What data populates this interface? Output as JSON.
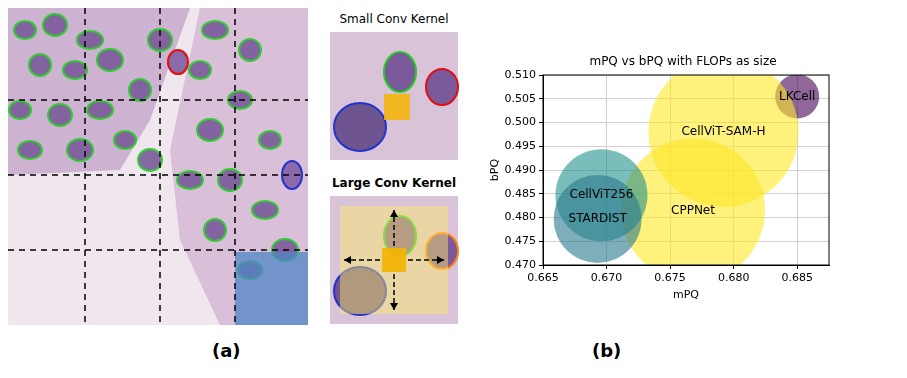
{
  "chart_data": {
    "type": "bubble",
    "title": "mPQ vs bPQ with FLOPs as size",
    "x_label": "mPQ",
    "y_label": "bPQ",
    "labels": [
      "LKCell",
      "CellViT-SAM-H",
      "CPPNet",
      "CellViT256",
      "STARDIST"
    ],
    "x": [
      0.685,
      0.6792,
      0.6768,
      0.6696,
      0.6693
    ],
    "values": [
      0.5055,
      0.498,
      0.4815,
      0.4847,
      0.4797
    ],
    "sizes": [
      484,
      5625,
      5184,
      2116,
      1936
    ],
    "colors": [
      "#440154",
      "#fde725",
      "#fde725",
      "#21918c",
      "#2a788e"
    ],
    "xlim": [
      0.665,
      0.6875
    ],
    "xticks": [
      {
        "value": 0.665,
        "label": "0.665"
      },
      {
        "value": 0.67,
        "label": "0.670"
      },
      0.675,
      {
        "value": 0.68,
        "label": "0.680"
      },
      0.685
    ],
    "ylim": [
      0.47,
      0.51
    ],
    "yticks": [
      {
        "value": 0.47,
        "label": "0.470"
      },
      0.475,
      {
        "value": 0.48,
        "label": "0.480"
      },
      0.485,
      {
        "value": 0.49,
        "label": "0.490"
      },
      0.495,
      {
        "value": 0.5,
        "label": "0.500"
      },
      0.505,
      {
        "value": 0.51,
        "label": "0.510"
      }
    ],
    "grid": true
  },
  "panels": {
    "a": {
      "label": "(a)",
      "insets": [
        {
          "title": "Small Conv Kernel"
        },
        {
          "title": "Large Conv Kernel"
        }
      ]
    },
    "b": {
      "label": "(b)"
    }
  }
}
